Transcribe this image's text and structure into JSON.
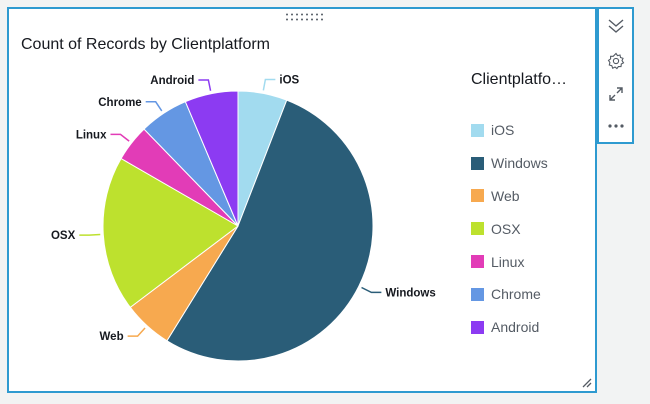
{
  "chart_data": {
    "type": "pie",
    "title": "Count of Records by Clientplatform",
    "legend_title": "Clientplatfo…",
    "legend_position": "right",
    "start_angle": "top",
    "direction": "clockwise",
    "slices": [
      {
        "label": "iOS",
        "value": 6,
        "color": "#a2dbef"
      },
      {
        "label": "Windows",
        "value": 54,
        "color": "#2a5d78"
      },
      {
        "label": "Web",
        "value": 6,
        "color": "#f7a94f"
      },
      {
        "label": "OSX",
        "value": 19,
        "color": "#bde12e"
      },
      {
        "label": "Linux",
        "value": 4.5,
        "color": "#e23cb7"
      },
      {
        "label": "Chrome",
        "value": 6,
        "color": "#6497e3"
      },
      {
        "label": "Android",
        "value": 6.5,
        "color": "#8c3bf2"
      }
    ]
  },
  "toolbar": {
    "icons": [
      "collapse-icon",
      "gear-icon",
      "expand-icon",
      "more-icon"
    ]
  },
  "colors": {
    "selection_border": "#2e9ad0",
    "background": "#f2f3f3",
    "icon": "#545b64"
  }
}
